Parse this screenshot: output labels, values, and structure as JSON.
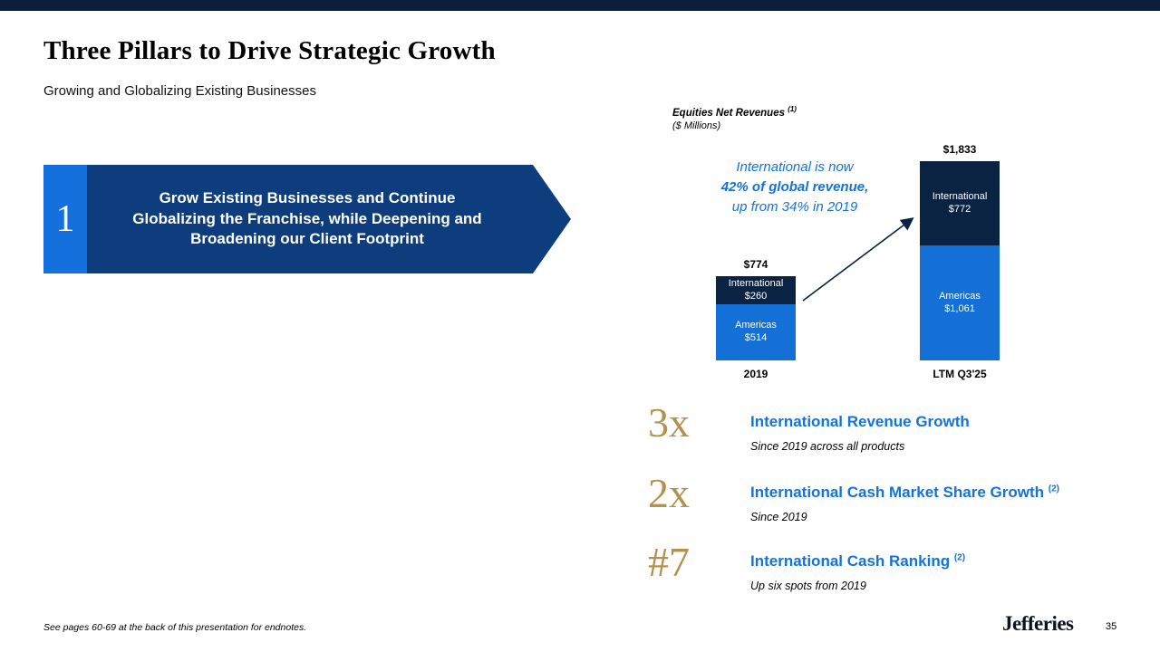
{
  "page": {
    "title": "Three Pillars to Drive Strategic Growth",
    "subtitle": "Growing and Globalizing Existing Businesses",
    "footnote": "See pages 60-69 at the back of this presentation for endnotes.",
    "brand": "Jefferies",
    "page_number": "35",
    "top_bar_color": "#0a1e3e"
  },
  "pillar": {
    "number": "1",
    "text": "Grow Existing Businesses and Continue Globalizing the Franchise, while Deepening and Broadening our Client Footprint",
    "number_box_color": "#1470dd",
    "body_color": "#0d3d7c"
  },
  "chart_data": {
    "type": "bar",
    "stacked": true,
    "title": "Equities Net Revenues",
    "title_superscript": "(1)",
    "units_label": "($ Millions)",
    "categories": [
      "2019",
      "LTM Q3'25"
    ],
    "series": [
      {
        "name": "International",
        "values": [
          260,
          772
        ],
        "color": "#0b2342"
      },
      {
        "name": "Americas",
        "values": [
          514,
          1061
        ],
        "color": "#146fd6"
      }
    ],
    "totals": [
      "$774",
      "$1,833"
    ],
    "xlabel": "",
    "ylabel": "",
    "legend_position": "inside-segments",
    "grid": false,
    "annotation": {
      "lines": [
        "International is now",
        "42% of global revenue,",
        "up from 34% in 2019"
      ],
      "color": "#1472d8"
    }
  },
  "stats": [
    {
      "value": "3x",
      "title": "International Revenue Growth",
      "superscript": "",
      "subtext": "Since 2019 across all products"
    },
    {
      "value": "2x",
      "title": "International Cash Market Share Growth",
      "superscript": "(2)",
      "subtext": "Since 2019"
    },
    {
      "value": "#7",
      "title": "International Cash Ranking",
      "superscript": "(2)",
      "subtext": "Up six spots from 2019"
    }
  ]
}
